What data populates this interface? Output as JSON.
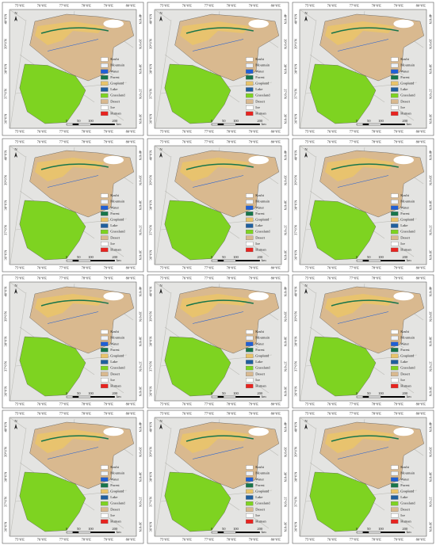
{
  "map": {
    "north": "N",
    "lon_labels": [
      "75°0'E",
      "76°0'E",
      "77°0'E",
      "78°0'E",
      "79°0'E",
      "80°0'E"
    ],
    "lat_labels": [
      "40°0'N",
      "39°0'N",
      "38°0'N",
      "37°0'N",
      "36°0'N"
    ],
    "legend": [
      {
        "label": "Kashi",
        "color": "#ffffff"
      },
      {
        "label": "Mountain",
        "color": "#eef2f8"
      },
      {
        "label": "Water",
        "color": "#1f5fd6"
      },
      {
        "label": "Forest",
        "color": "#17754a"
      },
      {
        "label": "Cropland",
        "color": "#e9c46a"
      },
      {
        "label": "Lake",
        "color": "#1f5f9e"
      },
      {
        "label": "Grassland",
        "color": "#7ed321"
      },
      {
        "label": "Desert",
        "color": "#d9b98f"
      },
      {
        "label": "Ice",
        "color": "#ffffff"
      },
      {
        "label": "Human",
        "color": "#e8231f"
      }
    ],
    "scale_labels": [
      "0",
      "50",
      "100",
      "200"
    ],
    "scale_unit": "km"
  }
}
